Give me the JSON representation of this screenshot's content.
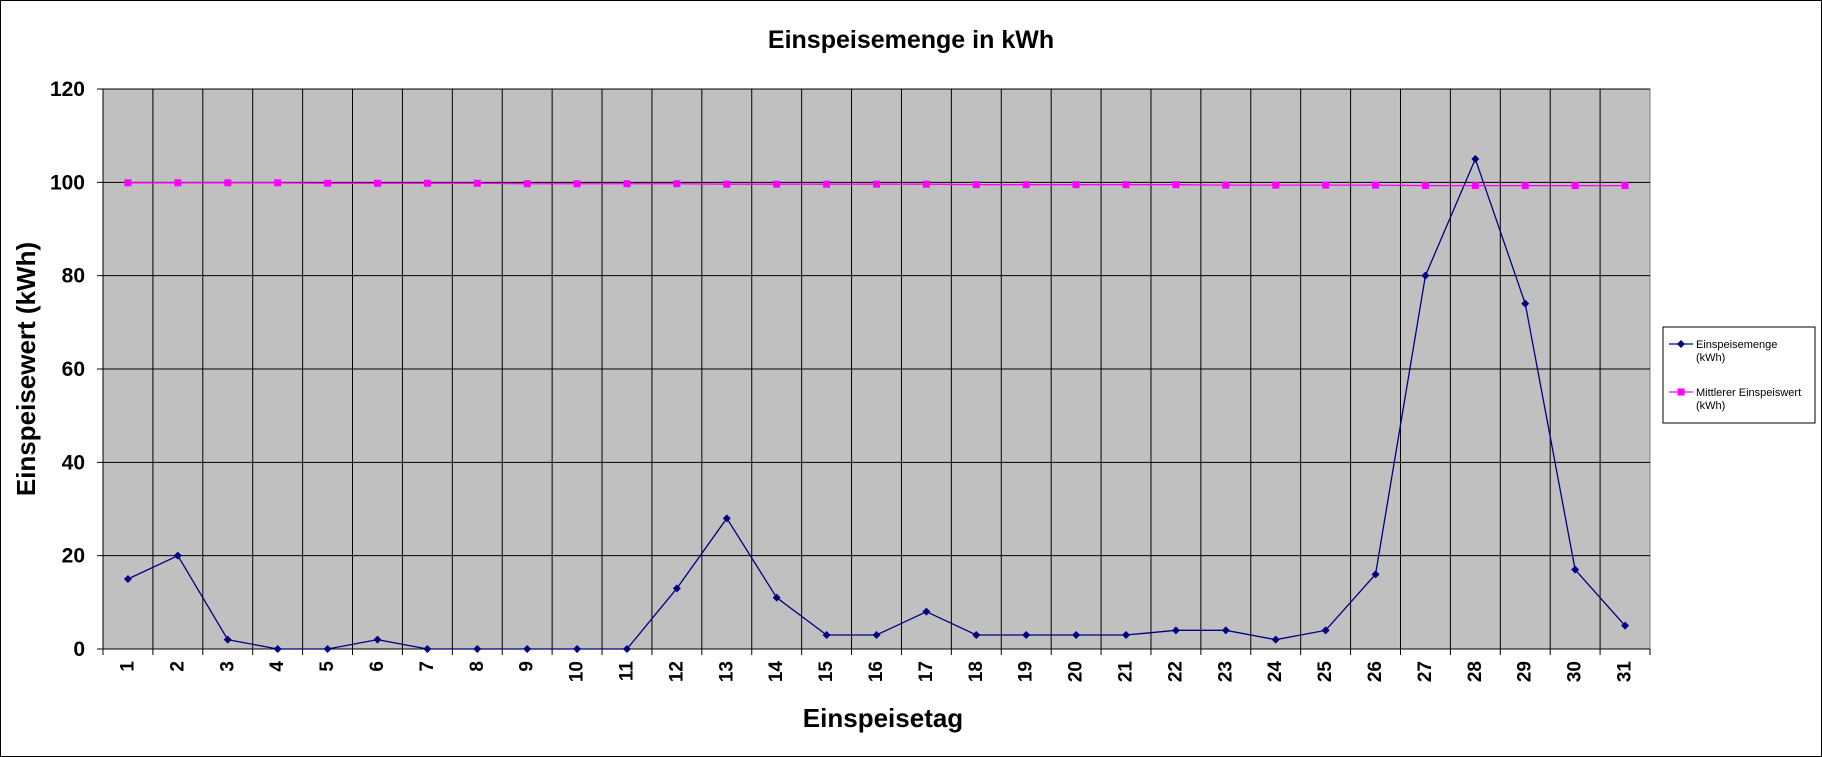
{
  "chart_data": {
    "type": "line",
    "title": "Einspeisemenge in kWh",
    "xlabel": "Einspeisetag",
    "ylabel": "Einspeisewert  (kWh)",
    "categories": [
      "1",
      "2",
      "3",
      "4",
      "5",
      "6",
      "7",
      "8",
      "9",
      "10",
      "11",
      "12",
      "13",
      "14",
      "15",
      "16",
      "17",
      "18",
      "19",
      "20",
      "21",
      "22",
      "23",
      "24",
      "25",
      "26",
      "27",
      "28",
      "29",
      "30",
      "31"
    ],
    "ylim": [
      0,
      120
    ],
    "yticks": [
      0,
      20,
      40,
      60,
      80,
      100,
      120
    ],
    "grid": true,
    "legend": "right",
    "series": [
      {
        "name": "Einspeisemenge",
        "name_unit": "(kWh)",
        "color": "#000080",
        "marker": "diamond",
        "values": [
          15,
          20,
          2,
          0,
          0,
          2,
          0,
          0,
          0,
          0,
          0,
          13,
          28,
          11,
          3,
          3,
          8,
          3,
          3,
          3,
          3,
          4,
          4,
          2,
          4,
          16,
          80,
          105,
          74,
          17,
          5
        ]
      },
      {
        "name": "Mittlerer Einspeiswert",
        "name_unit": "(kWh)",
        "color": "#ff00ff",
        "marker": "square",
        "values": [
          99.9,
          99.9,
          99.9,
          99.9,
          99.8,
          99.8,
          99.8,
          99.8,
          99.7,
          99.7,
          99.7,
          99.7,
          99.6,
          99.6,
          99.6,
          99.6,
          99.6,
          99.5,
          99.5,
          99.5,
          99.5,
          99.5,
          99.4,
          99.4,
          99.4,
          99.4,
          99.3,
          99.3,
          99.3,
          99.3,
          99.3
        ]
      }
    ]
  }
}
